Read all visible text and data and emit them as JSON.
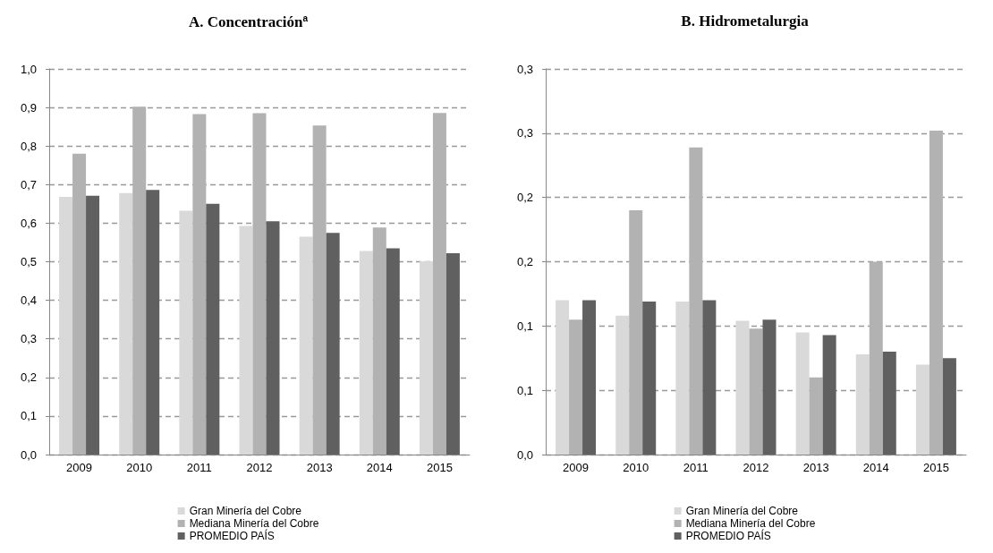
{
  "chart_data": [
    {
      "type": "bar",
      "title": "A. Concentración$^{a}$",
      "categories": [
        "2009",
        "2010",
        "2011",
        "2012",
        "2013",
        "2014",
        "2015"
      ],
      "series": [
        {
          "name": "Gran Minería del Cobre",
          "color": "#d9d9d9",
          "values": [
            0.668,
            0.678,
            0.632,
            0.593,
            0.565,
            0.528,
            0.501
          ]
        },
        {
          "name": "Mediana Minería del Cobre",
          "color": "#b2b2b2",
          "values": [
            0.78,
            0.902,
            0.883,
            0.885,
            0.853,
            0.589,
            0.886
          ]
        },
        {
          "name": "PROMEDIO PAÍS",
          "color": "#606060",
          "values": [
            0.671,
            0.686,
            0.65,
            0.605,
            0.575,
            0.535,
            0.522
          ]
        }
      ],
      "ylim": [
        0,
        1
      ],
      "yticks": [
        {
          "value": 0,
          "label": "0,0"
        },
        {
          "value": 0.1,
          "label": "0,1"
        },
        {
          "value": 0.2,
          "label": "0,2"
        },
        {
          "value": 0.3,
          "label": "0,3"
        },
        {
          "value": 0.4,
          "label": "0,4"
        },
        {
          "value": 0.5,
          "label": "0,5"
        },
        {
          "value": 0.6,
          "label": "0,6"
        },
        {
          "value": 0.7,
          "label": "0,7"
        },
        {
          "value": 0.8,
          "label": "0,8"
        },
        {
          "value": 0.9,
          "label": "0,9"
        },
        {
          "value": 1,
          "label": "1,0"
        }
      ],
      "grid": "y",
      "legend": "bottom"
    },
    {
      "type": "bar",
      "title": "B. Hidrometalurgia",
      "categories": [
        "2009",
        "2010",
        "2011",
        "2012",
        "2013",
        "2014",
        "2015"
      ],
      "series": [
        {
          "name": "Gran Minería del Cobre",
          "color": "#d9d9d9",
          "values": [
            0.12,
            0.108,
            0.119,
            0.104,
            0.095,
            0.078,
            0.07
          ]
        },
        {
          "name": "Mediana Minería del Cobre",
          "color": "#b2b2b2",
          "values": [
            0.105,
            0.19,
            0.239,
            0.098,
            0.06,
            0.15,
            0.252
          ]
        },
        {
          "name": "PROMEDIO PAÍS",
          "color": "#606060",
          "values": [
            0.12,
            0.119,
            0.12,
            0.105,
            0.093,
            0.08,
            0.075
          ]
        }
      ],
      "ylim": [
        0,
        0.3
      ],
      "yticks": [
        {
          "value": 0,
          "label": "0,0"
        },
        {
          "value": 0.05,
          "label": "0,1"
        },
        {
          "value": 0.1,
          "label": "0,1"
        },
        {
          "value": 0.15,
          "label": "0,2"
        },
        {
          "value": 0.2,
          "label": "0,2"
        },
        {
          "value": 0.25,
          "label": "0,3"
        },
        {
          "value": 0.3,
          "label": "0,3"
        }
      ],
      "grid": "y",
      "legend": "bottom"
    }
  ]
}
